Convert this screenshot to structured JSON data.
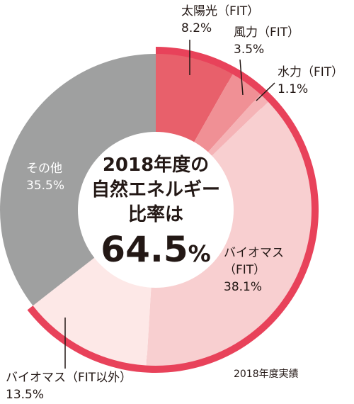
{
  "chart_data": {
    "type": "pie",
    "categories": [
      "太陽光（FIT）",
      "風力（FIT）",
      "水力（FIT）",
      "バイオマス（FIT）",
      "バイオマス（FIT以外）",
      "その他"
    ],
    "values": [
      8.2,
      3.5,
      1.1,
      38.1,
      13.5,
      35.5
    ],
    "value_labels": [
      "8.2%",
      "3.5%",
      "1.1%",
      "38.1%",
      "13.5%",
      "35.5%"
    ],
    "colors": [
      "#e8606b",
      "#f09095",
      "#f5b3b6",
      "#f8cfd0",
      "#fde8e7",
      "#9fa0a0"
    ],
    "accent_color": "#e8425a",
    "center_text": {
      "line1": "2018年度の",
      "line2": "自然エネルギー",
      "line3": "比率は",
      "value": "64.5",
      "unit": "%"
    },
    "note": "2018年度実績",
    "labels": {
      "solar_name": "太陽光（FIT）",
      "solar_value": "8.2%",
      "wind_name": "風力（FIT）",
      "wind_value": "3.5%",
      "hydro_name": "水力（FIT）",
      "hydro_value": "1.1%",
      "biomass_fit_line1": "バイオマス",
      "biomass_fit_line2": "（FIT）",
      "biomass_fit_value": "38.1%",
      "biomass_other_name": "バイオマス（FIT以外）",
      "biomass_other_value": "13.5%",
      "other_name": "その他",
      "other_value": "35.5%"
    }
  }
}
